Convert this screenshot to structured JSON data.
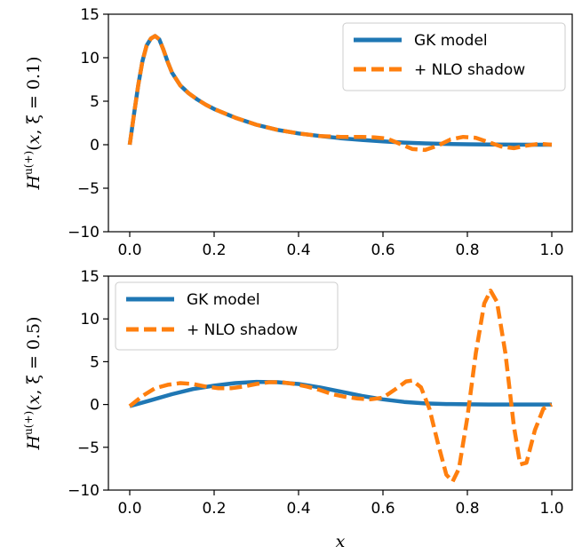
{
  "chart_data": [
    {
      "type": "line",
      "ylabel": "H^{u(+)}(x, ξ = 0.1)",
      "xlabel": "",
      "xlim": [
        0.0,
        1.0
      ],
      "ylim": [
        -10,
        15
      ],
      "xticks": [
        "0.0",
        "0.2",
        "0.4",
        "0.6",
        "0.8",
        "1.0"
      ],
      "yticks": [
        "−10",
        "−5",
        "0",
        "5",
        "10",
        "15"
      ],
      "legend_position": "top-right",
      "grid": false,
      "series": [
        {
          "name": "GK model",
          "color": "#1f77b4",
          "style": "solid",
          "x": [
            0.0,
            0.01,
            0.02,
            0.03,
            0.04,
            0.05,
            0.06,
            0.07,
            0.08,
            0.09,
            0.1,
            0.12,
            0.14,
            0.16,
            0.18,
            0.2,
            0.25,
            0.3,
            0.35,
            0.4,
            0.45,
            0.5,
            0.55,
            0.6,
            0.65,
            0.7,
            0.75,
            0.8,
            0.85,
            0.9,
            0.95,
            1.0
          ],
          "y": [
            0.0,
            3.5,
            6.8,
            9.6,
            11.4,
            12.2,
            12.5,
            12.1,
            10.9,
            9.5,
            8.3,
            6.8,
            5.9,
            5.2,
            4.6,
            4.1,
            3.1,
            2.3,
            1.7,
            1.3,
            1.0,
            0.75,
            0.55,
            0.38,
            0.25,
            0.15,
            0.09,
            0.05,
            0.02,
            0.01,
            0.0,
            0.0
          ]
        },
        {
          "name": "+ NLO shadow",
          "color": "#ff7f0e",
          "style": "dashed",
          "x": [
            0.0,
            0.01,
            0.02,
            0.03,
            0.04,
            0.05,
            0.06,
            0.07,
            0.08,
            0.09,
            0.1,
            0.12,
            0.14,
            0.16,
            0.18,
            0.2,
            0.25,
            0.3,
            0.35,
            0.4,
            0.45,
            0.5,
            0.55,
            0.58,
            0.61,
            0.64,
            0.67,
            0.7,
            0.73,
            0.76,
            0.79,
            0.82,
            0.85,
            0.88,
            0.91,
            0.94,
            0.97,
            1.0
          ],
          "y": [
            0.0,
            3.5,
            6.8,
            9.6,
            11.4,
            12.2,
            12.5,
            12.1,
            10.9,
            9.5,
            8.3,
            6.8,
            5.9,
            5.2,
            4.6,
            4.1,
            3.1,
            2.3,
            1.7,
            1.3,
            1.0,
            0.9,
            0.9,
            0.85,
            0.7,
            0.1,
            -0.5,
            -0.6,
            -0.1,
            0.6,
            0.9,
            0.8,
            0.3,
            -0.2,
            -0.4,
            -0.1,
            0.1,
            0.0
          ]
        }
      ]
    },
    {
      "type": "line",
      "ylabel": "H^{u(+)}(x, ξ = 0.5)",
      "xlabel": "x",
      "xlim": [
        0.0,
        1.0
      ],
      "ylim": [
        -10,
        15
      ],
      "xticks": [
        "0.0",
        "0.2",
        "0.4",
        "0.6",
        "0.8",
        "1.0"
      ],
      "yticks": [
        "−10",
        "−5",
        "0",
        "5",
        "10",
        "15"
      ],
      "legend_position": "top-left",
      "grid": false,
      "series": [
        {
          "name": "GK model",
          "color": "#1f77b4",
          "style": "solid",
          "x": [
            0.0,
            0.05,
            0.1,
            0.15,
            0.2,
            0.25,
            0.3,
            0.35,
            0.4,
            0.45,
            0.5,
            0.55,
            0.6,
            0.65,
            0.7,
            0.75,
            0.8,
            0.85,
            0.9,
            0.95,
            1.0
          ],
          "y": [
            -0.2,
            0.5,
            1.2,
            1.8,
            2.2,
            2.5,
            2.65,
            2.6,
            2.4,
            2.0,
            1.5,
            1.0,
            0.6,
            0.3,
            0.12,
            0.05,
            0.02,
            0.0,
            0.0,
            0.0,
            0.0
          ]
        },
        {
          "name": "+ NLO shadow",
          "color": "#ff7f0e",
          "style": "dashed",
          "x": [
            0.0,
            0.03,
            0.06,
            0.09,
            0.12,
            0.15,
            0.18,
            0.21,
            0.24,
            0.27,
            0.3,
            0.33,
            0.36,
            0.39,
            0.42,
            0.45,
            0.48,
            0.51,
            0.54,
            0.57,
            0.6,
            0.63,
            0.655,
            0.67,
            0.69,
            0.71,
            0.73,
            0.75,
            0.765,
            0.78,
            0.8,
            0.82,
            0.84,
            0.855,
            0.87,
            0.89,
            0.91,
            0.925,
            0.94,
            0.96,
            0.98,
            1.0
          ],
          "y": [
            -0.2,
            1.0,
            1.9,
            2.3,
            2.5,
            2.4,
            2.1,
            1.9,
            1.9,
            2.1,
            2.4,
            2.6,
            2.6,
            2.4,
            2.1,
            1.7,
            1.2,
            0.9,
            0.7,
            0.6,
            0.8,
            1.8,
            2.7,
            2.8,
            2.0,
            -0.5,
            -4.5,
            -8.2,
            -9.0,
            -7.5,
            -1.5,
            6.0,
            11.8,
            13.3,
            12.0,
            6.0,
            -2.5,
            -7.0,
            -6.8,
            -3.0,
            -0.5,
            0.0
          ]
        }
      ]
    }
  ]
}
